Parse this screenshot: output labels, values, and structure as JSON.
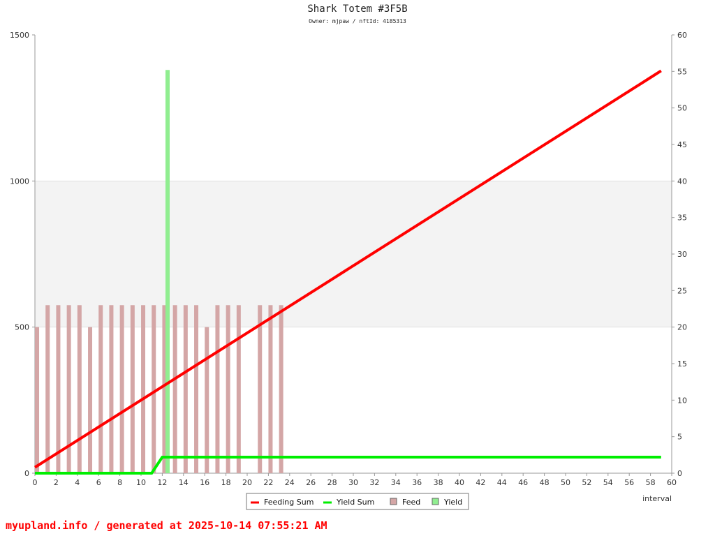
{
  "chart_data": {
    "type": "bar+line",
    "title": "Shark Totem #3F5B",
    "subtitle": "Owner: mjpaw / nftId: 4185313",
    "xlabel": "interval",
    "xlim": [
      0,
      60
    ],
    "ylim_left": [
      0,
      1500
    ],
    "ylim_right": [
      0,
      60
    ],
    "x_ticks": [
      0,
      2,
      4,
      6,
      8,
      10,
      12,
      14,
      16,
      18,
      20,
      22,
      24,
      26,
      28,
      30,
      32,
      34,
      36,
      38,
      40,
      42,
      44,
      46,
      48,
      50,
      52,
      54,
      56,
      58,
      60
    ],
    "y_ticks_left": [
      0,
      500,
      1000,
      1500
    ],
    "y_ticks_right": [
      0,
      5,
      10,
      15,
      20,
      25,
      30,
      35,
      40,
      45,
      50,
      55,
      60
    ],
    "shaded_band_left": [
      500,
      1000
    ],
    "legend_position": "bottom-center",
    "series": [
      {
        "name": "Feeding Sum",
        "type": "line",
        "axis": "left",
        "color": "#ff0000",
        "x": [
          0,
          1,
          2,
          3,
          4,
          5,
          6,
          7,
          8,
          9,
          10,
          11,
          12,
          13,
          14,
          15,
          16,
          17,
          18,
          19,
          20,
          21,
          22,
          23,
          24,
          25,
          26,
          27,
          28,
          29,
          30,
          31,
          32,
          33,
          34,
          35,
          36,
          37,
          38,
          39,
          40,
          41,
          42,
          43,
          44,
          45,
          46,
          47,
          48,
          49,
          50,
          51,
          52,
          53,
          54,
          55,
          56,
          57,
          58,
          59
        ],
        "values": [
          20,
          43,
          66,
          89,
          112,
          135,
          158,
          181,
          204,
          227,
          250,
          273,
          296,
          319,
          342,
          365,
          388,
          411,
          434,
          457,
          480,
          503,
          526,
          549,
          572,
          595,
          618,
          641,
          664,
          687,
          710,
          733,
          756,
          779,
          802,
          825,
          848,
          871,
          894,
          917,
          940,
          963,
          986,
          1009,
          1032,
          1055,
          1078,
          1101,
          1124,
          1147,
          1170,
          1193,
          1216,
          1239,
          1262,
          1285,
          1308,
          1331,
          1354,
          1377
        ]
      },
      {
        "name": "Yield Sum",
        "type": "line",
        "axis": "left",
        "color": "#00ee00",
        "x": [
          0,
          11,
          12,
          59
        ],
        "values": [
          0,
          0,
          55,
          55
        ]
      },
      {
        "name": "Feed",
        "type": "bar",
        "axis": "right",
        "color": "#d4a6a6",
        "x": [
          0,
          1,
          2,
          3,
          4,
          5,
          6,
          7,
          8,
          9,
          10,
          11,
          12,
          13,
          14,
          15,
          16,
          17,
          18,
          19,
          21,
          22,
          23
        ],
        "values": [
          20,
          23,
          23,
          23,
          23,
          20,
          23,
          23,
          23,
          23,
          23,
          23,
          23,
          23,
          23,
          23,
          20,
          23,
          23,
          23,
          23,
          23,
          23
        ]
      },
      {
        "name": "Yield",
        "type": "bar",
        "axis": "right",
        "color": "#90ee90",
        "x": [
          12.5
        ],
        "values": [
          55.2
        ]
      }
    ]
  },
  "footer": "myupland.info / generated at 2025-10-14 07:55:21 AM"
}
